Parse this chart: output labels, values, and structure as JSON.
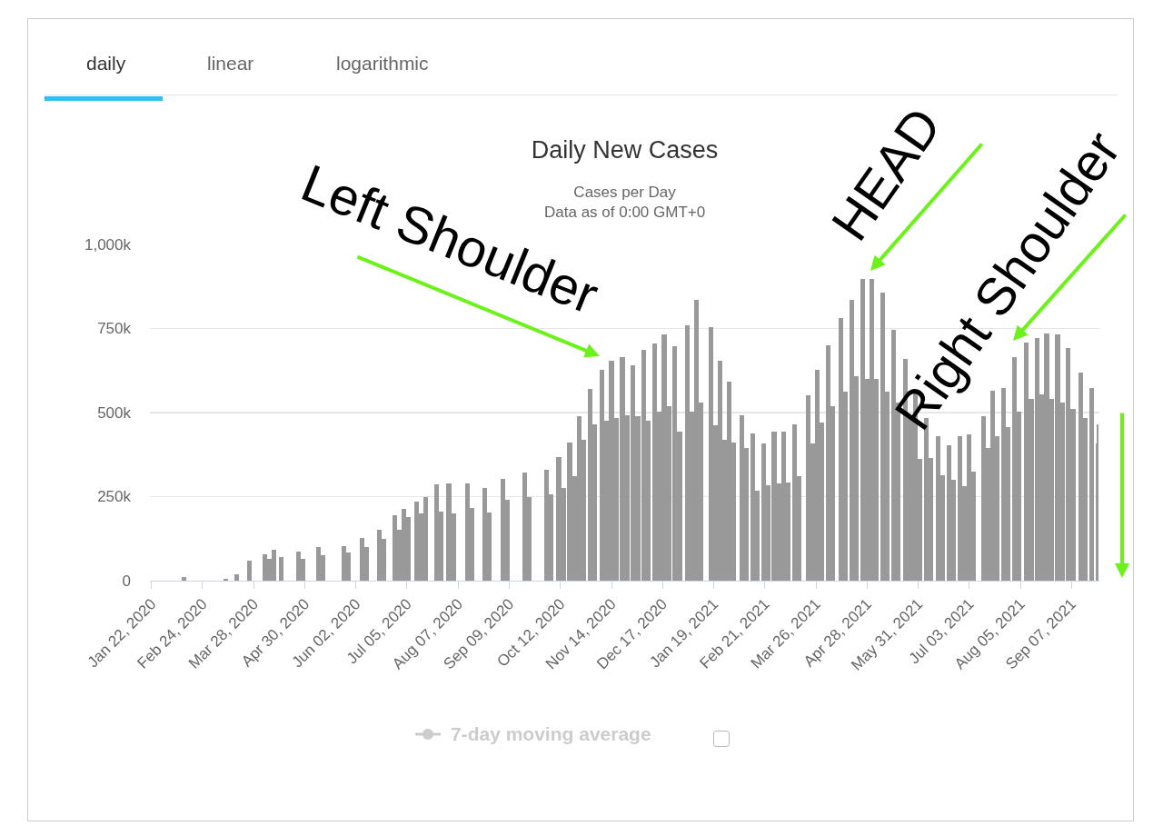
{
  "chart_data": {
    "type": "bar",
    "title": "Daily New Cases",
    "subtitle": "Cases per Day\nData as of 0:00 GMT+0",
    "annotations": [
      "daily",
      "linear",
      "logarithmic",
      "Left Shoulder",
      "HEAD",
      "Right Shoulder",
      "7-day moving average"
    ],
    "color": "#999999",
    "x": [
      "2020-02-12",
      "2020-03-10",
      "2020-03-17",
      "2020-03-25",
      "2020-04-04",
      "2020-04-07",
      "2020-04-10",
      "2020-04-15",
      "2020-04-26",
      "2020-04-29",
      "2020-05-09",
      "2020-05-12",
      "2020-05-25",
      "2020-05-28",
      "2020-06-06",
      "2020-06-09",
      "2020-06-17",
      "2020-06-20",
      "2020-06-27",
      "2020-06-30",
      "2020-07-03",
      "2020-07-06",
      "2020-07-11",
      "2020-07-14",
      "2020-07-17",
      "2020-07-24",
      "2020-07-27",
      "2020-08-01",
      "2020-08-04",
      "2020-08-13",
      "2020-08-16",
      "2020-08-24",
      "2020-08-27",
      "2020-09-05",
      "2020-09-08",
      "2020-09-19",
      "2020-09-22",
      "2020-10-03",
      "2020-10-06",
      "2020-10-11",
      "2020-10-14",
      "2020-10-18",
      "2020-10-21",
      "2020-10-24",
      "2020-10-27",
      "2020-10-31",
      "2020-11-03",
      "2020-11-08",
      "2020-11-11",
      "2020-11-14",
      "2020-11-17",
      "2020-11-21",
      "2020-11-24",
      "2020-11-28",
      "2020-12-01",
      "2020-12-05",
      "2020-12-08",
      "2020-12-12",
      "2020-12-15",
      "2020-12-18",
      "2020-12-21",
      "2020-12-25",
      "2020-12-28",
      "2021-01-02",
      "2021-01-05",
      "2021-01-08",
      "2021-01-11",
      "2021-01-17",
      "2021-01-20",
      "2021-01-23",
      "2021-01-26",
      "2021-01-29",
      "2021-02-01",
      "2021-02-06",
      "2021-02-09",
      "2021-02-13",
      "2021-02-16",
      "2021-02-20",
      "2021-02-23",
      "2021-02-27",
      "2021-03-02",
      "2021-03-05",
      "2021-03-08",
      "2021-03-12",
      "2021-03-15",
      "2021-03-21",
      "2021-03-24",
      "2021-03-27",
      "2021-03-30",
      "2021-04-03",
      "2021-04-06",
      "2021-04-11",
      "2021-04-14",
      "2021-04-18",
      "2021-04-21",
      "2021-04-25",
      "2021-04-28",
      "2021-05-01",
      "2021-05-04",
      "2021-05-08",
      "2021-05-11",
      "2021-05-15",
      "2021-05-18",
      "2021-05-23",
      "2021-05-26",
      "2021-05-29",
      "2021-06-01",
      "2021-06-05",
      "2021-06-08",
      "2021-06-13",
      "2021-06-16",
      "2021-06-20",
      "2021-06-23",
      "2021-06-27",
      "2021-06-30",
      "2021-07-03",
      "2021-07-06",
      "2021-07-12",
      "2021-07-15",
      "2021-07-18",
      "2021-07-21",
      "2021-07-25",
      "2021-07-28",
      "2021-08-01",
      "2021-08-04",
      "2021-08-09",
      "2021-08-12",
      "2021-08-16",
      "2021-08-19",
      "2021-08-22",
      "2021-08-25",
      "2021-08-29",
      "2021-09-01",
      "2021-09-05",
      "2021-09-08",
      "2021-09-13",
      "2021-09-16",
      "2021-09-20",
      "2021-09-23",
      "2021-09-24"
    ],
    "values": [
      12000,
      5000,
      20000,
      60000,
      78000,
      65000,
      92000,
      70000,
      87000,
      65000,
      100000,
      75000,
      102000,
      85000,
      127000,
      100000,
      151000,
      125000,
      195000,
      151000,
      214000,
      188000,
      235000,
      200000,
      249000,
      287000,
      205000,
      290000,
      200000,
      290000,
      215000,
      276000,
      203000,
      303000,
      240000,
      322000,
      249000,
      330000,
      257000,
      367000,
      276000,
      411000,
      312000,
      490000,
      420000,
      571000,
      466000,
      628000,
      475000,
      655000,
      484000,
      665000,
      493000,
      640000,
      490000,
      687000,
      475000,
      705000,
      503000,
      733000,
      520000,
      696000,
      444000,
      760000,
      503000,
      836000,
      530000,
      755000,
      462000,
      655000,
      420000,
      593000,
      411000,
      493000,
      395000,
      438000,
      268000,
      408000,
      285000,
      444000,
      290000,
      444000,
      292000,
      465000,
      312000,
      552000,
      408000,
      628000,
      470000,
      700000,
      520000,
      782000,
      563000,
      836000,
      609000,
      896000,
      600000,
      896000,
      600000,
      858000,
      563000,
      747000,
      530000,
      660000,
      480000,
      557000,
      363000,
      484000,
      365000,
      430000,
      314000,
      403000,
      300000,
      430000,
      281000,
      435000,
      325000,
      490000,
      395000,
      565000,
      430000,
      574000,
      457000,
      665000,
      503000,
      709000,
      540000,
      722000,
      555000,
      736000,
      540000,
      733000,
      530000,
      693000,
      511000,
      620000,
      484000,
      574000,
      408000,
      465000
    ],
    "xlim": [
      "2020-01-21",
      "2021-09-25"
    ],
    "xticks": [
      {
        "value": "2020-01-22",
        "label": "Jan 22, 2020"
      },
      {
        "value": "2020-02-24",
        "label": "Feb 24, 2020"
      },
      {
        "value": "2020-03-28",
        "label": "Mar 28, 2020"
      },
      {
        "value": "2020-04-30",
        "label": "Apr 30, 2020"
      },
      {
        "value": "2020-06-02",
        "label": "Jun 02, 2020"
      },
      {
        "value": "2020-07-05",
        "label": "Jul 05, 2020"
      },
      {
        "value": "2020-08-07",
        "label": "Aug 07, 2020"
      },
      {
        "value": "2020-09-09",
        "label": "Sep 09, 2020"
      },
      {
        "value": "2020-10-12",
        "label": "Oct 12, 2020"
      },
      {
        "value": "2020-11-14",
        "label": "Nov 14, 2020"
      },
      {
        "value": "2020-12-17",
        "label": "Dec 17, 2020"
      },
      {
        "value": "2021-01-19",
        "label": "Jan 19, 2021"
      },
      {
        "value": "2021-02-21",
        "label": "Feb 21, 2021"
      },
      {
        "value": "2021-03-26",
        "label": "Mar 26, 2021"
      },
      {
        "value": "2021-04-28",
        "label": "Apr 28, 2021"
      },
      {
        "value": "2021-05-31",
        "label": "May 31, 2021"
      },
      {
        "value": "2021-07-03",
        "label": "Jul 03, 2021"
      },
      {
        "value": "2021-08-05",
        "label": "Aug 05, 2021"
      },
      {
        "value": "2021-09-07",
        "label": "Sep 07, 2021"
      }
    ],
    "ylim": [
      0,
      1000000
    ],
    "yticks": [
      0,
      {
        "value": 250000,
        "label": "250k"
      },
      {
        "value": 500000,
        "label": "500k"
      },
      {
        "value": 750000,
        "label": "750k"
      },
      {
        "value": 1000000,
        "label": "1,000k"
      }
    ],
    "grid": "y"
  }
}
